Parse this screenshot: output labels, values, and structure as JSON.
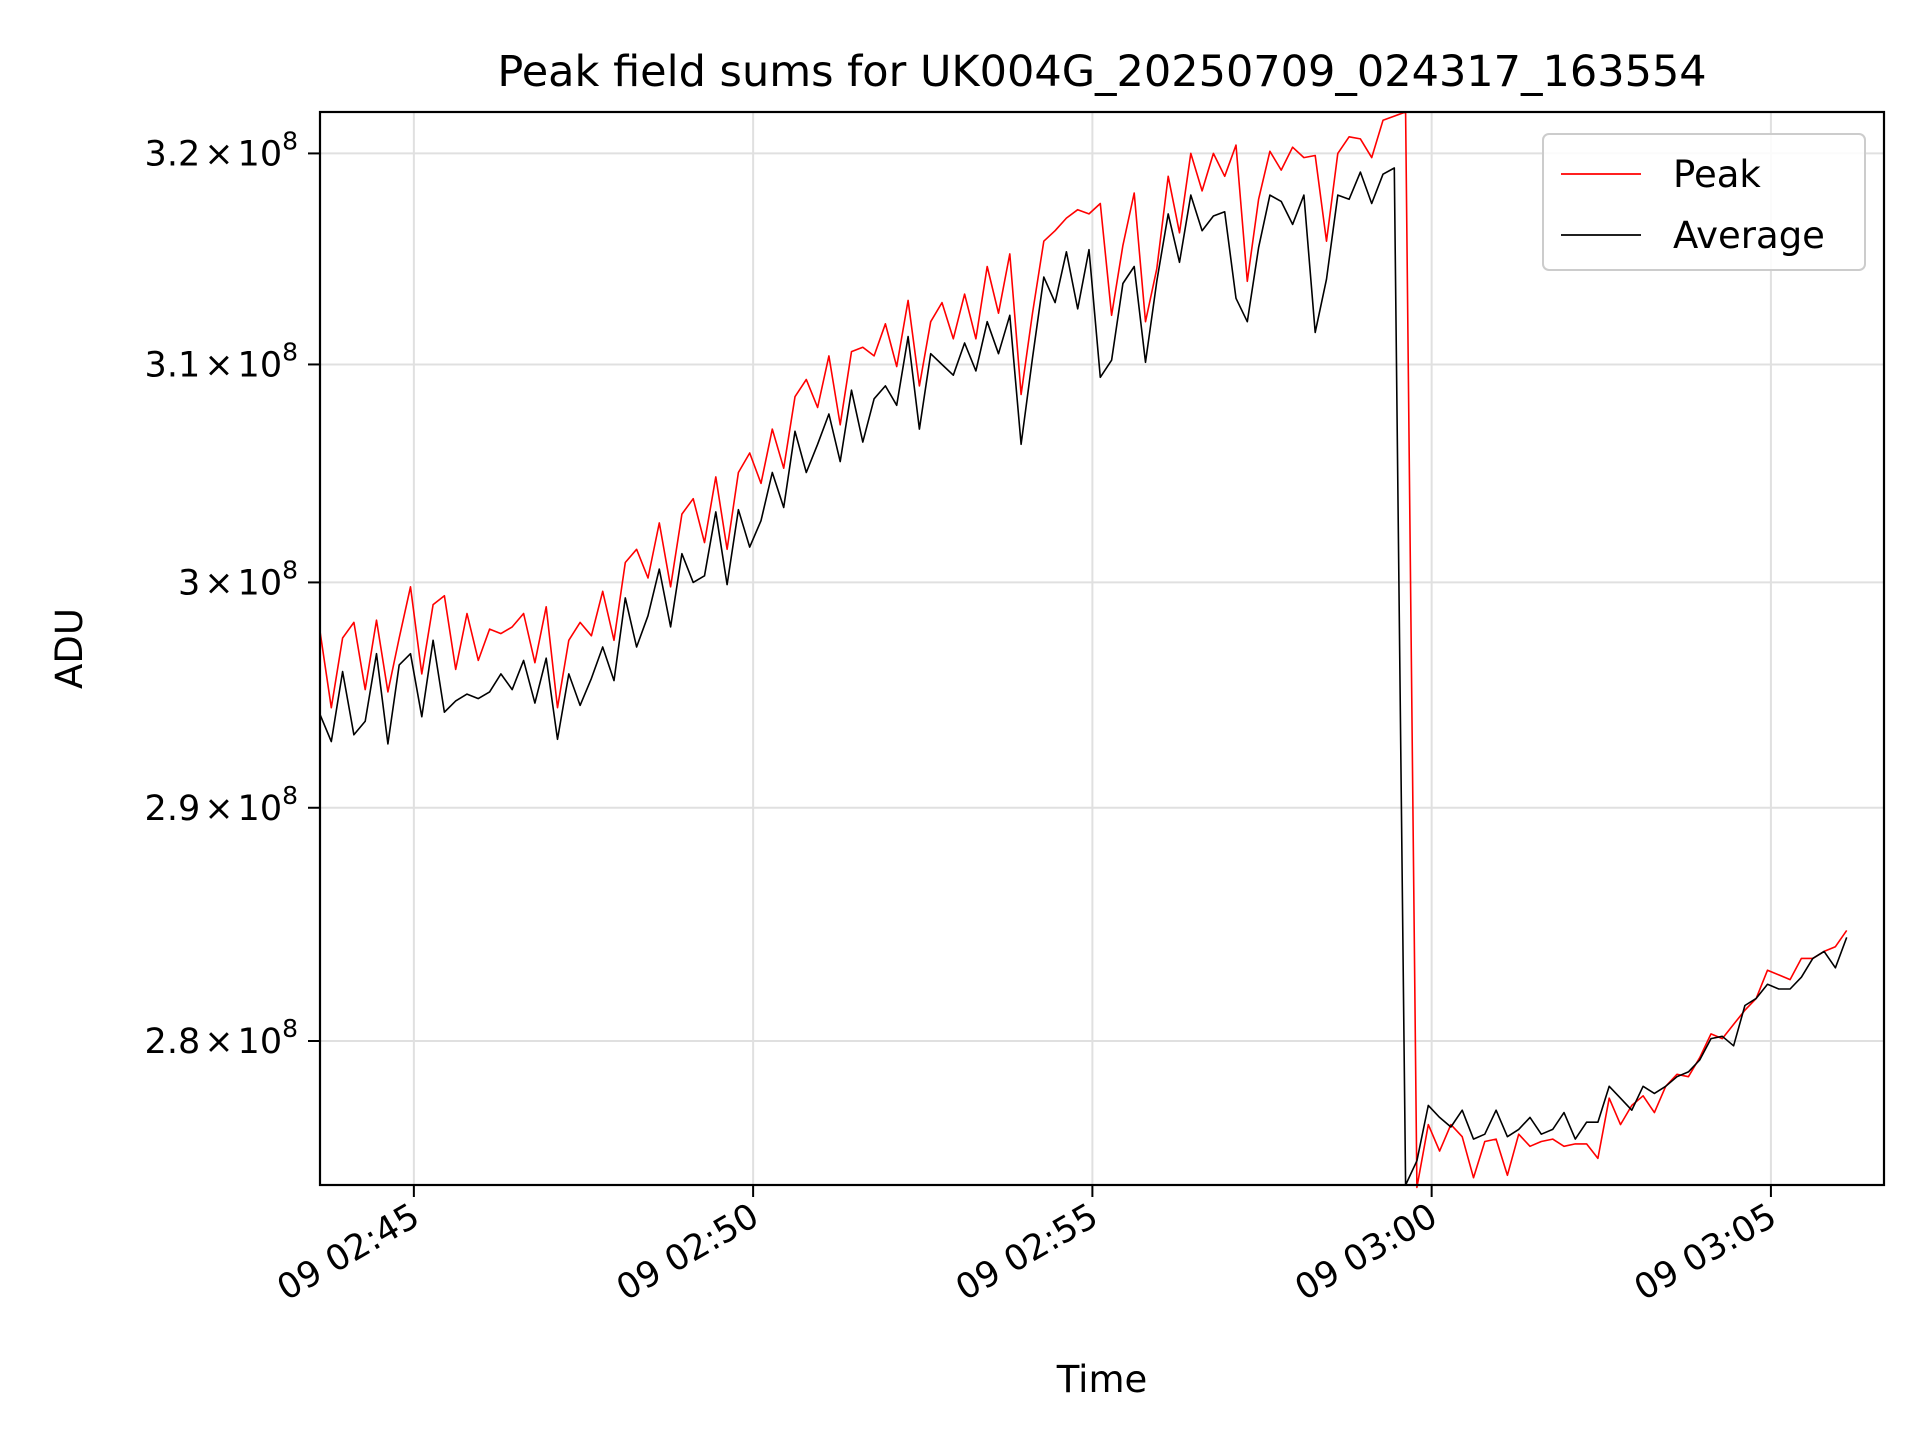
{
  "chart_data": {
    "type": "line",
    "title": "Peak field sums for UK004G_20250709_024317_163554",
    "xlabel": "Time",
    "ylabel": "ADU",
    "y_scale": "log",
    "x_range": [
      "2025-07-09T02:43:37",
      "2025-07-09T03:06:40"
    ],
    "y_range": [
      274000000.0,
      322000000.0
    ],
    "x_ticks": [
      {
        "value": "2025-07-09T02:45:00",
        "label": "09 02:45"
      },
      {
        "value": "2025-07-09T02:50:00",
        "label": "09 02:50"
      },
      {
        "value": "2025-07-09T02:55:00",
        "label": "09 02:55"
      },
      {
        "value": "2025-07-09T03:00:00",
        "label": "09 03:00"
      },
      {
        "value": "2025-07-09T03:05:00",
        "label": "09 03:05"
      }
    ],
    "y_ticks": [
      {
        "value": 280000000.0,
        "mantissa": "2.8",
        "base": "10",
        "exponent": "8"
      },
      {
        "value": 290000000.0,
        "mantissa": "2.9",
        "base": "10",
        "exponent": "8"
      },
      {
        "value": 300000000.0,
        "mantissa": "3",
        "base": "10",
        "exponent": "8"
      },
      {
        "value": 310000000.0,
        "mantissa": "3.1",
        "base": "10",
        "exponent": "8"
      },
      {
        "value": 320000000.0,
        "mantissa": "3.2",
        "base": "10",
        "exponent": "8"
      }
    ],
    "grid": true,
    "legend_position": "top-right",
    "x_start": "2025-07-09T02:43:37",
    "x_step_seconds": 10,
    "series": [
      {
        "name": "Peak",
        "color": "#ff0000",
        "values": [
          297.8,
          294.4,
          297.5,
          298.2,
          295.2,
          298.3,
          295.1,
          297.5,
          299.8,
          295.9,
          299.0,
          299.4,
          296.1,
          298.6,
          296.5,
          297.9,
          297.7,
          298.0,
          298.6,
          296.4,
          298.9,
          294.4,
          297.4,
          298.2,
          297.6,
          299.6,
          297.4,
          300.9,
          301.5,
          300.2,
          302.7,
          299.8,
          303.1,
          303.8,
          301.8,
          304.8,
          301.5,
          305.0,
          305.9,
          304.5,
          307.0,
          305.2,
          308.5,
          309.3,
          308.0,
          310.4,
          307.2,
          310.6,
          310.8,
          310.4,
          311.9,
          309.9,
          313.0,
          309.0,
          312.0,
          312.9,
          311.2,
          313.3,
          311.2,
          314.6,
          312.4,
          315.2,
          308.6,
          312.4,
          315.8,
          316.3,
          316.9,
          317.3,
          317.1,
          317.6,
          312.3,
          315.6,
          318.1,
          312.0,
          314.5,
          318.9,
          316.2,
          320.0,
          318.2,
          320.0,
          318.9,
          320.4,
          313.9,
          317.8,
          320.1,
          319.2,
          320.3,
          319.8,
          319.9,
          315.8,
          320.0,
          320.8,
          320.7,
          319.8,
          321.6,
          321.8,
          322.0,
          273.9,
          276.5,
          275.4,
          276.5,
          276.0,
          274.3,
          275.8,
          275.9,
          274.4,
          276.1,
          275.6,
          275.8,
          275.9,
          275.6,
          275.7,
          275.7,
          275.1,
          277.6,
          276.5,
          277.3,
          277.7,
          277.0,
          278.1,
          278.6,
          278.5,
          279.3,
          280.3,
          280.1,
          280.7,
          281.3,
          281.8,
          283.0,
          282.8,
          282.6,
          283.5,
          283.5,
          283.8,
          284.0,
          284.7
        ]
      },
      {
        "name": "Average",
        "color": "#000000",
        "values": [
          294.1,
          292.9,
          296.0,
          293.2,
          293.8,
          296.8,
          292.8,
          296.3,
          296.8,
          294.0,
          297.4,
          294.2,
          294.7,
          295.0,
          294.8,
          295.1,
          295.9,
          295.2,
          296.5,
          294.6,
          296.6,
          293.0,
          295.9,
          294.5,
          295.7,
          297.1,
          295.6,
          299.3,
          297.1,
          298.5,
          300.6,
          298.0,
          301.3,
          300.0,
          300.3,
          303.2,
          299.9,
          303.3,
          301.6,
          302.8,
          305.0,
          303.4,
          306.9,
          305.0,
          306.3,
          307.7,
          305.5,
          308.8,
          306.4,
          308.4,
          309.0,
          308.1,
          311.3,
          307.0,
          310.5,
          310.0,
          309.5,
          311.0,
          309.7,
          312.0,
          310.5,
          312.3,
          306.3,
          310.3,
          314.1,
          312.9,
          315.3,
          312.6,
          315.4,
          309.4,
          310.2,
          313.8,
          314.6,
          310.1,
          313.9,
          317.1,
          314.8,
          318.0,
          316.3,
          317.0,
          317.2,
          313.1,
          312.0,
          315.5,
          318.0,
          317.7,
          316.6,
          318.0,
          311.5,
          314.0,
          318.0,
          317.8,
          319.1,
          317.6,
          319.0,
          319.3,
          274.0,
          275.0,
          277.3,
          276.8,
          276.4,
          277.1,
          275.9,
          276.1,
          277.1,
          276.0,
          276.3,
          276.8,
          276.1,
          276.3,
          277.0,
          275.9,
          276.6,
          276.6,
          278.1,
          277.6,
          277.1,
          278.1,
          277.8,
          278.1,
          278.5,
          278.7,
          279.2,
          280.1,
          280.2,
          279.8,
          281.5,
          281.8,
          282.4,
          282.2,
          282.2,
          282.7,
          283.5,
          283.8,
          283.1,
          284.4
        ]
      }
    ]
  }
}
